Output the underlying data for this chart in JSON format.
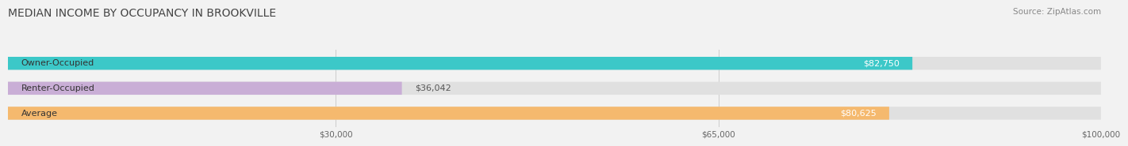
{
  "title": "MEDIAN INCOME BY OCCUPANCY IN BROOKVILLE",
  "source": "Source: ZipAtlas.com",
  "categories": [
    "Owner-Occupied",
    "Renter-Occupied",
    "Average"
  ],
  "values": [
    82750,
    36042,
    80625
  ],
  "bar_colors": [
    "#3cc8c8",
    "#c9aed6",
    "#f5b96e"
  ],
  "bar_labels": [
    "$82,750",
    "$36,042",
    "$80,625"
  ],
  "xlim": [
    0,
    100000
  ],
  "xticks": [
    30000,
    65000,
    100000
  ],
  "xtick_labels": [
    "$30,000",
    "$65,000",
    "$100,000"
  ],
  "background_color": "#f2f2f2",
  "bar_bg_color": "#e0e0e0",
  "title_fontsize": 10,
  "source_fontsize": 7.5,
  "label_fontsize": 8,
  "value_fontsize": 8,
  "bar_height": 0.52
}
